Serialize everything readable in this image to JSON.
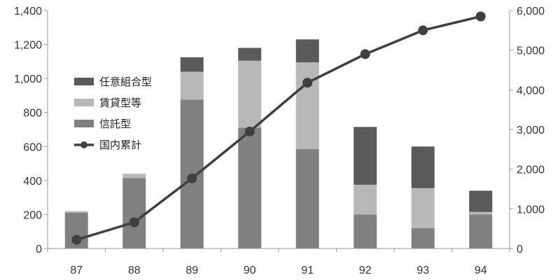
{
  "chart_data": {
    "type": "bar",
    "stacked": true,
    "categories": [
      "87",
      "88",
      "89",
      "90",
      "91",
      "92",
      "93",
      "94"
    ],
    "series": [
      {
        "name": "信託型",
        "type": "bar",
        "axis": "left",
        "color": "#808080",
        "values": [
          210,
          415,
          875,
          710,
          585,
          200,
          120,
          200
        ]
      },
      {
        "name": "賃貸型等",
        "type": "bar",
        "axis": "left",
        "color": "#b8b8b8",
        "values": [
          10,
          25,
          165,
          395,
          510,
          175,
          235,
          15
        ]
      },
      {
        "name": "任意組合型",
        "type": "bar",
        "axis": "left",
        "color": "#5a5a5a",
        "values": [
          0,
          0,
          85,
          75,
          135,
          340,
          245,
          125
        ]
      },
      {
        "name": "国内累計",
        "type": "line",
        "axis": "right",
        "color": "#404040",
        "values": [
          220,
          660,
          1770,
          2950,
          4180,
          4900,
          5500,
          5850
        ]
      }
    ],
    "legend": {
      "position": "left",
      "order": [
        "任意組合型",
        "賃貸型等",
        "信託型",
        "国内累計"
      ]
    },
    "y_left": {
      "min": 0,
      "max": 1400,
      "step": 200,
      "tick_labels": [
        "0",
        "200",
        "400",
        "600",
        "800",
        "1,000",
        "1,200",
        "1,400"
      ]
    },
    "y_right": {
      "min": 0,
      "max": 6000,
      "step": 1000,
      "tick_labels": [
        "0",
        "1,000",
        "2,000",
        "3,000",
        "4,000",
        "5,000",
        "6,000"
      ]
    },
    "grid": false,
    "title": "",
    "xlabel": "",
    "ylabel": ""
  }
}
